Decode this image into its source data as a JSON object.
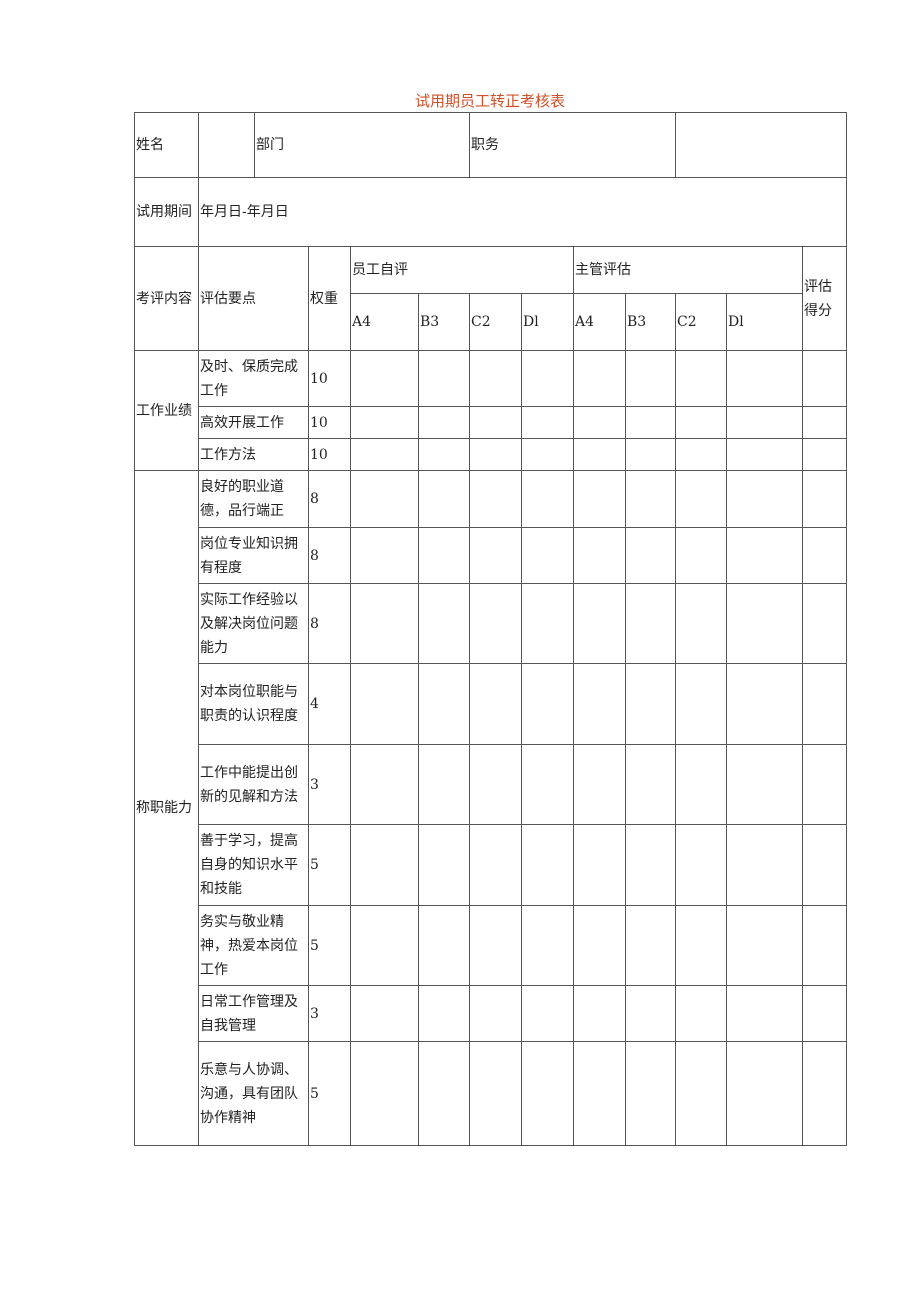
{
  "title": "试用期员工转正考核表",
  "info": {
    "name_label": "姓名",
    "dept_label": "部门",
    "position_label": "职务",
    "period_label": "试用期间",
    "period_value": "年月日-年月日"
  },
  "header": {
    "category": "考评内容",
    "points": "评估要点",
    "weight": "权重",
    "self": "员工自评",
    "manager": "主管评估",
    "score": "评估得分",
    "grades": [
      "A4",
      "B3",
      "C2",
      "Dl"
    ]
  },
  "groups": [
    {
      "name": "工作业绩",
      "items": [
        {
          "point": "及时、保质完成工作",
          "weight": "10"
        },
        {
          "point": "高效开展工作",
          "weight": "10"
        },
        {
          "point": "工作方法",
          "weight": "10"
        }
      ]
    },
    {
      "name": "称职能力",
      "items": [
        {
          "point": "良好的职业道德，品行端正",
          "weight": "8"
        },
        {
          "point": "岗位专业知识拥有程度",
          "weight": "8"
        },
        {
          "point": "实际工作经验以及解决岗位问题能力",
          "weight": "8"
        },
        {
          "point": "对本岗位职能与职责的认识程度",
          "weight": "4"
        },
        {
          "point": "工作中能提出创新的见解和方法",
          "weight": "3"
        },
        {
          "point": "善于学习，提高自身的知识水平和技能",
          "weight": "5"
        },
        {
          "point": "务实与敬业精神，热爱本岗位工作",
          "weight": "5"
        },
        {
          "point": "日常工作管理及自我管理",
          "weight": "3"
        },
        {
          "point": "乐意与人协调、沟通，具有团队协作精神",
          "weight": "5"
        }
      ]
    }
  ]
}
